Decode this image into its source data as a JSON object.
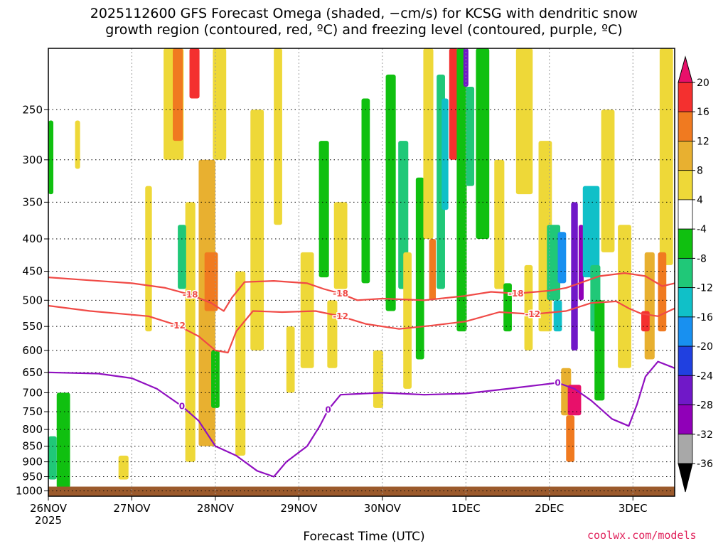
{
  "title_line1": "2025112600 GFS Forecast Omega (shaded, −cm/s) for KCSG with dendritic snow",
  "title_line2": "growth region (contoured, red, ºC) and freezing level (contoured, purple, ºC)",
  "xlabel": "Forecast Time (UTC)",
  "credit": "coolwx.com/models",
  "chart_data": {
    "type": "heatmap",
    "x_ticks": [
      "26NOV",
      "27NOV",
      "28NOV",
      "29NOV",
      "30NOV",
      "1DEC",
      "2DEC",
      "3DEC"
    ],
    "x_year": "2025",
    "y_ticks": [
      250,
      300,
      350,
      400,
      450,
      500,
      550,
      600,
      650,
      700,
      750,
      800,
      850,
      900,
      950,
      1000
    ],
    "y_range_hpa": [
      200,
      1020
    ],
    "x_range_days": [
      0,
      7.5
    ],
    "grid": true,
    "colorbar": {
      "labels": [
        20,
        16,
        12,
        8,
        4,
        -4,
        -8,
        -12,
        -16,
        -20,
        -24,
        -28,
        -32,
        -36
      ],
      "colors": [
        "#e8106a",
        "#f4302f",
        "#f07a20",
        "#e8b030",
        "#eed838",
        "#ffffff",
        "#10c010",
        "#20c878",
        "#10c0c8",
        "#1890f0",
        "#2040e0",
        "#7018c8",
        "#9000b8",
        "#a8a8a8",
        "#000000"
      ]
    },
    "contours": [
      {
        "label": "-18",
        "color": "#f04a46",
        "points": [
          [
            0,
            460
          ],
          [
            0.5,
            465
          ],
          [
            1,
            470
          ],
          [
            1.4,
            478
          ],
          [
            1.7,
            490
          ],
          [
            1.95,
            505
          ],
          [
            2.1,
            520
          ],
          [
            2.2,
            495
          ],
          [
            2.35,
            468
          ],
          [
            2.7,
            466
          ],
          [
            3.1,
            470
          ],
          [
            3.3,
            480
          ],
          [
            3.5,
            488
          ],
          [
            3.7,
            500
          ],
          [
            4,
            497
          ],
          [
            4.5,
            500
          ],
          [
            5,
            492
          ],
          [
            5.3,
            485
          ],
          [
            5.6,
            488
          ],
          [
            6,
            483
          ],
          [
            6.2,
            478
          ],
          [
            6.4,
            468
          ],
          [
            6.6,
            458
          ],
          [
            6.9,
            453
          ],
          [
            7.15,
            458
          ],
          [
            7.35,
            475
          ],
          [
            7.5,
            470
          ]
        ]
      },
      {
        "label": "-12",
        "color": "#f04a46",
        "points": [
          [
            0,
            510
          ],
          [
            0.5,
            520
          ],
          [
            1.2,
            530
          ],
          [
            1.55,
            548
          ],
          [
            1.8,
            570
          ],
          [
            2.0,
            600
          ],
          [
            2.15,
            605
          ],
          [
            2.25,
            560
          ],
          [
            2.45,
            520
          ],
          [
            2.8,
            522
          ],
          [
            3.2,
            520
          ],
          [
            3.5,
            530
          ],
          [
            3.8,
            545
          ],
          [
            4.2,
            555
          ],
          [
            4.6,
            548
          ],
          [
            5,
            540
          ],
          [
            5.4,
            522
          ],
          [
            5.8,
            526
          ],
          [
            6.2,
            520
          ],
          [
            6.5,
            505
          ],
          [
            6.8,
            502
          ],
          [
            6.95,
            515
          ],
          [
            7.1,
            525
          ],
          [
            7.3,
            530
          ],
          [
            7.5,
            515
          ]
        ]
      },
      {
        "label": "0",
        "color": "#9010c0",
        "points": [
          [
            0,
            650
          ],
          [
            0.6,
            653
          ],
          [
            1.0,
            664
          ],
          [
            1.3,
            690
          ],
          [
            1.6,
            735
          ],
          [
            1.8,
            775
          ],
          [
            2.0,
            850
          ],
          [
            2.25,
            880
          ],
          [
            2.5,
            930
          ],
          [
            2.7,
            950
          ],
          [
            2.85,
            900
          ],
          [
            3.1,
            850
          ],
          [
            3.25,
            790
          ],
          [
            3.35,
            745
          ],
          [
            3.5,
            705
          ],
          [
            4,
            700
          ],
          [
            4.5,
            705
          ],
          [
            5,
            702
          ],
          [
            5.5,
            690
          ],
          [
            5.9,
            680
          ],
          [
            6.1,
            675
          ],
          [
            6.3,
            690
          ],
          [
            6.5,
            720
          ],
          [
            6.75,
            770
          ],
          [
            6.95,
            790
          ],
          [
            7.05,
            730
          ],
          [
            7.15,
            660
          ],
          [
            7.3,
            625
          ],
          [
            7.5,
            640
          ]
        ]
      }
    ]
  }
}
